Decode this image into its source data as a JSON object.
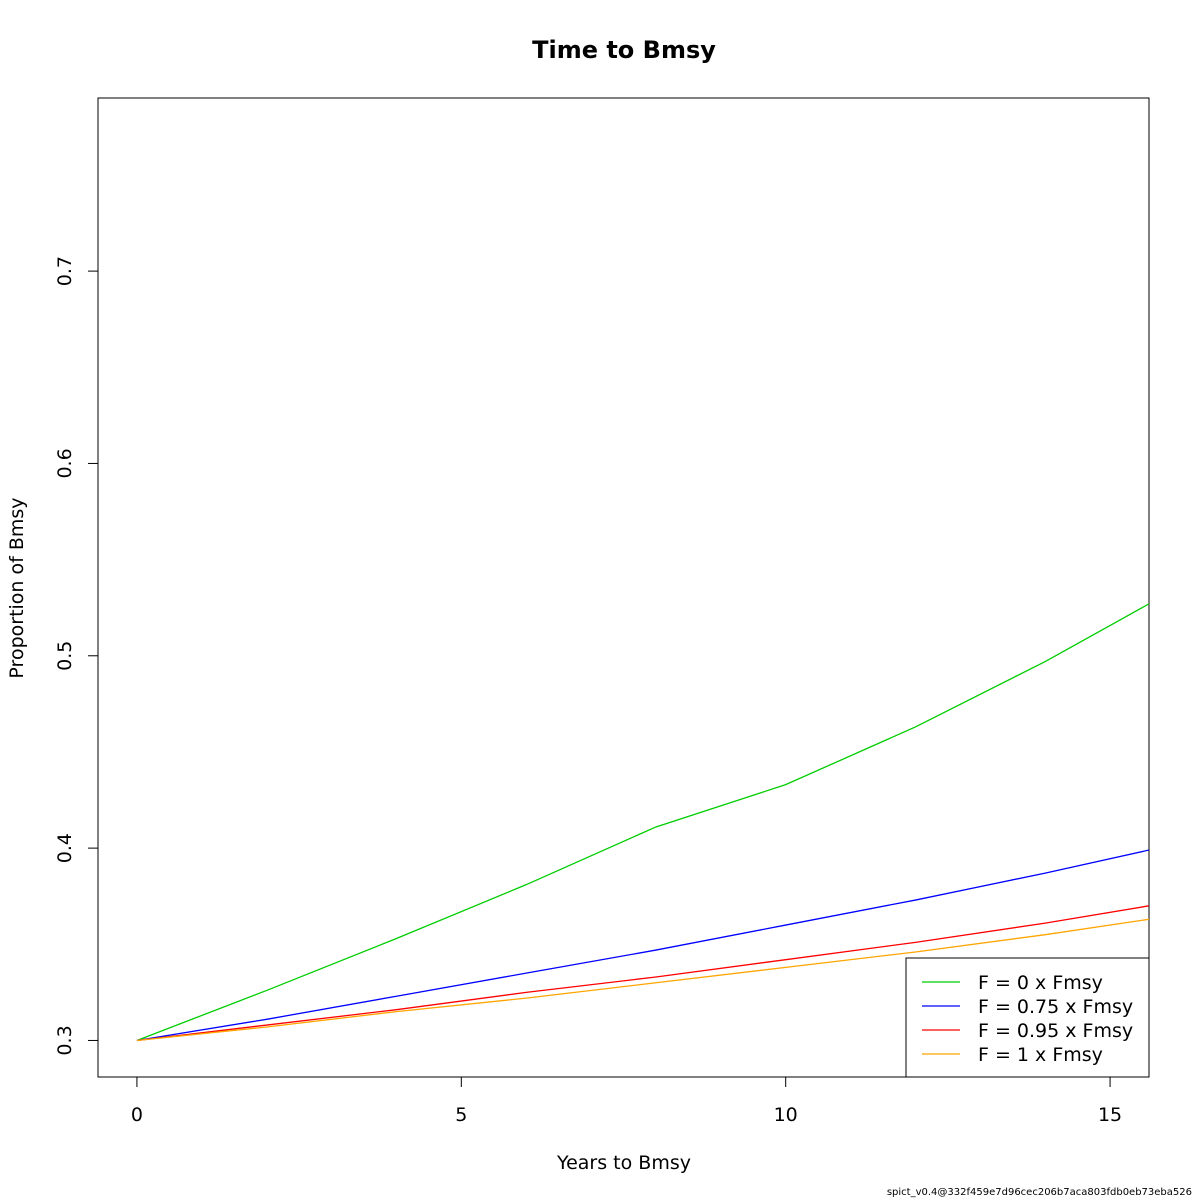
{
  "footer_text": "spict_v0.4@332f459e7d96cec206b7aca803fdb0eb73eba526",
  "chart_data": {
    "type": "line",
    "title": "Time to Bmsy",
    "xlabel": "Years to Bmsy",
    "ylabel": "Proportion of Bmsy",
    "xlim": [
      -0.6,
      15.6
    ],
    "ylim": [
      0.281,
      0.79
    ],
    "xticks": [
      0,
      5,
      10,
      15
    ],
    "yticks": [
      0.3,
      0.4,
      0.5,
      0.6,
      0.7
    ],
    "grid": false,
    "legend_position": "bottom-right",
    "series": [
      {
        "name": "F = 0 x Fmsy",
        "color": "#00cd00",
        "x": [
          0,
          2,
          4,
          6,
          8,
          10,
          12,
          14,
          15.6
        ],
        "y": [
          0.3,
          0.326,
          0.353,
          0.381,
          0.411,
          0.433,
          0.463,
          0.497,
          0.527
        ]
      },
      {
        "name": "F = 0.75 x Fmsy",
        "color": "#0000ff",
        "x": [
          0,
          2,
          4,
          6,
          8,
          10,
          12,
          14,
          15.6
        ],
        "y": [
          0.3,
          0.311,
          0.323,
          0.335,
          0.347,
          0.36,
          0.373,
          0.387,
          0.399
        ]
      },
      {
        "name": "F = 0.95 x Fmsy",
        "color": "#ff0000",
        "x": [
          0,
          2,
          4,
          6,
          8,
          10,
          12,
          14,
          15.6
        ],
        "y": [
          0.3,
          0.308,
          0.316,
          0.325,
          0.333,
          0.342,
          0.351,
          0.361,
          0.37
        ]
      },
      {
        "name": "F = 1 x Fmsy",
        "color": "#ffa500",
        "x": [
          0,
          2,
          4,
          6,
          8,
          10,
          12,
          14,
          15.6
        ],
        "y": [
          0.3,
          0.307,
          0.315,
          0.322,
          0.33,
          0.338,
          0.346,
          0.355,
          0.363
        ]
      }
    ]
  }
}
